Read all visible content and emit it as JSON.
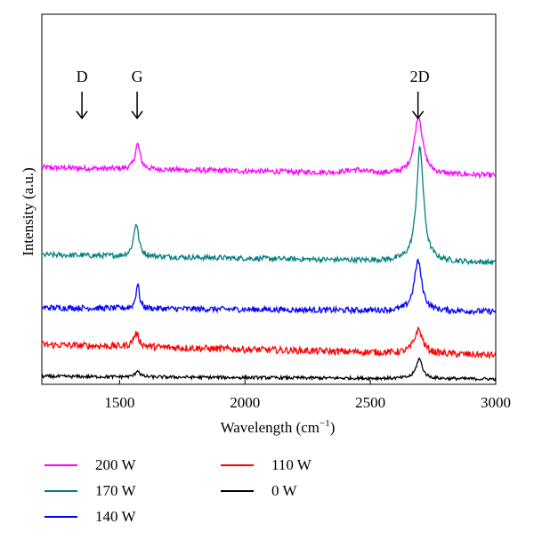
{
  "chart_data": {
    "type": "line",
    "xlabel": "Wavelength (cm",
    "xlabel_sup": "−1",
    "xlabel_close": ")",
    "ylabel": "Intensity (a.u.)",
    "xlim": [
      1190,
      3000
    ],
    "xticks": [
      1500,
      2000,
      2500,
      3000
    ],
    "xtick_labels": [
      "1500",
      "2000",
      "2500",
      "3000"
    ],
    "y_ticks_shown": false,
    "grid": false,
    "legend_position": "bottom",
    "annotations": [
      {
        "label": "D",
        "x": 1350
      },
      {
        "label": "G",
        "x": 1570
      },
      {
        "label": "2D",
        "x": 2690
      }
    ],
    "series": [
      {
        "name": "200 W",
        "color": "#ff00ff",
        "baseline": 8.2,
        "drift": -0.3,
        "noise": 0.1,
        "peaks": [
          {
            "x": 1572,
            "h": 0.95,
            "w": 12
          },
          {
            "x": 2692,
            "h": 2.2,
            "w": 20
          },
          {
            "x": 2440,
            "h": 0.12,
            "w": 40
          }
        ]
      },
      {
        "name": "170 W",
        "color": "#008080",
        "baseline": 4.9,
        "drift": -0.3,
        "noise": 0.1,
        "peaks": [
          {
            "x": 1566,
            "h": 1.25,
            "w": 12
          },
          {
            "x": 2698,
            "h": 4.3,
            "w": 17
          }
        ]
      },
      {
        "name": "140 W",
        "color": "#0000ff",
        "baseline": 2.9,
        "drift": -0.15,
        "noise": 0.11,
        "peaks": [
          {
            "x": 1572,
            "h": 0.95,
            "w": 8
          },
          {
            "x": 2690,
            "h": 1.9,
            "w": 18
          }
        ]
      },
      {
        "name": "110 W",
        "color": "#ff0000",
        "baseline": 1.5,
        "drift": -0.4,
        "noise": 0.13,
        "peaks": [
          {
            "x": 1566,
            "h": 0.5,
            "w": 14
          },
          {
            "x": 2692,
            "h": 0.9,
            "w": 20
          }
        ]
      },
      {
        "name": "0 W",
        "color": "#000000",
        "baseline": 0.3,
        "drift": -0.1,
        "noise": 0.06,
        "peaks": [
          {
            "x": 1572,
            "h": 0.25,
            "w": 10
          },
          {
            "x": 2695,
            "h": 0.75,
            "w": 15
          }
        ]
      }
    ],
    "ylim": [
      0,
      14
    ]
  },
  "legend": {
    "items": [
      {
        "label": "200 W",
        "color": "#ff00ff"
      },
      {
        "label": "170 W",
        "color": "#008080"
      },
      {
        "label": "140 W",
        "color": "#0000ff"
      },
      {
        "label": "110 W",
        "color": "#ff0000"
      },
      {
        "label": "0 W",
        "color": "#000000"
      }
    ]
  }
}
